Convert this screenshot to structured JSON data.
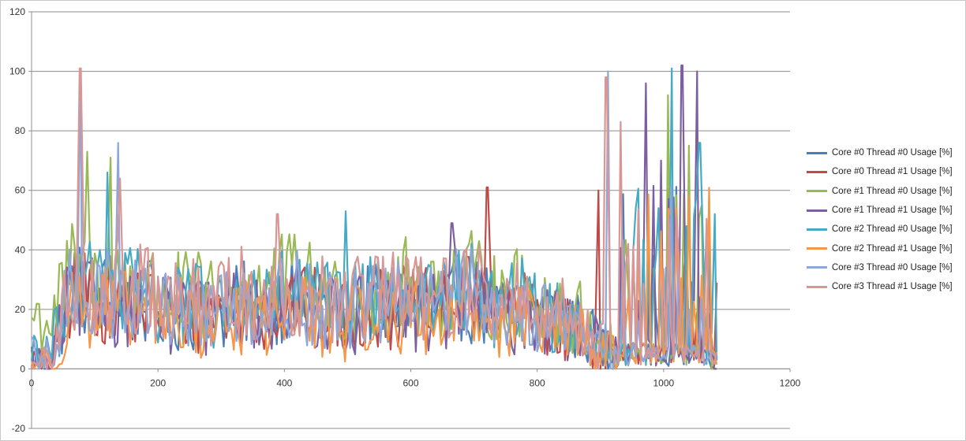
{
  "chart_data": {
    "type": "line",
    "title": "",
    "xlabel": "",
    "ylabel": "",
    "xlim": [
      0,
      1200
    ],
    "ylim": [
      -20,
      120
    ],
    "x_ticks": [
      "0",
      "200",
      "400",
      "600",
      "800",
      "1000",
      "1200"
    ],
    "y_ticks": [
      "-20",
      "0",
      "20",
      "40",
      "60",
      "80",
      "100",
      "120"
    ],
    "grid": "horizontal",
    "legend_position": "right",
    "x_range": [
      0,
      1085
    ],
    "series": [
      {
        "name": "Core #0 Thread #0 Usage [%]",
        "color": "#4a7ebb",
        "baseline": [
          3,
          2,
          28,
          25,
          24,
          24,
          22,
          18,
          20,
          18,
          20,
          22,
          20,
          24,
          22,
          20,
          17,
          22,
          20,
          22,
          20,
          20,
          25,
          22,
          18,
          20,
          18,
          16,
          14,
          8,
          2,
          2,
          8,
          2,
          2,
          2
        ]
      },
      {
        "name": "Core #0 Thread #1 Usage [%]",
        "color": "#be4b48",
        "baseline": [
          1,
          1,
          26,
          24,
          23,
          23,
          21,
          18,
          19,
          18,
          20,
          21,
          19,
          23,
          21,
          19,
          17,
          21,
          20,
          21,
          20,
          20,
          24,
          21,
          18,
          19,
          18,
          15,
          13,
          8,
          2,
          2,
          6,
          2,
          2,
          5
        ]
      },
      {
        "name": "Core #1 Thread #0 Usage [%]",
        "color": "#98b954",
        "baseline": [
          18,
          16,
          32,
          30,
          29,
          29,
          27,
          23,
          25,
          23,
          26,
          28,
          25,
          30,
          27,
          25,
          22,
          27,
          25,
          28,
          26,
          26,
          31,
          27,
          23,
          26,
          23,
          20,
          17,
          10,
          3,
          3,
          10,
          3,
          3,
          3
        ]
      },
      {
        "name": "Core #1 Thread #1 Usage [%]",
        "color": "#7d5fa0",
        "baseline": [
          2,
          1,
          25,
          23,
          22,
          22,
          20,
          17,
          18,
          17,
          19,
          20,
          18,
          22,
          20,
          18,
          16,
          20,
          19,
          20,
          19,
          19,
          23,
          20,
          17,
          18,
          17,
          15,
          13,
          9,
          3,
          3,
          9,
          3,
          3,
          2
        ]
      },
      {
        "name": "Core #2 Thread #0 Usage [%]",
        "color": "#46aac5",
        "baseline": [
          8,
          6,
          29,
          27,
          26,
          26,
          24,
          20,
          22,
          20,
          23,
          25,
          22,
          27,
          24,
          22,
          19,
          24,
          22,
          25,
          23,
          23,
          28,
          24,
          20,
          23,
          20,
          17,
          15,
          8,
          2,
          2,
          8,
          2,
          2,
          6
        ]
      },
      {
        "name": "Core #2 Thread #1 Usage [%]",
        "color": "#f79646",
        "baseline": [
          1,
          1,
          22,
          20,
          19,
          19,
          18,
          15,
          16,
          15,
          17,
          18,
          16,
          19,
          18,
          16,
          14,
          18,
          17,
          18,
          17,
          17,
          20,
          18,
          15,
          16,
          15,
          13,
          11,
          7,
          2,
          2,
          6,
          2,
          2,
          2
        ]
      },
      {
        "name": "Core #3 Thread #0 Usage [%]",
        "color": "#8ea6d8",
        "baseline": [
          3,
          2,
          28,
          26,
          25,
          25,
          23,
          19,
          21,
          19,
          22,
          24,
          21,
          26,
          23,
          21,
          18,
          23,
          21,
          24,
          22,
          22,
          27,
          23,
          19,
          22,
          19,
          16,
          14,
          8,
          2,
          2,
          8,
          2,
          2,
          3
        ]
      },
      {
        "name": "Core #3 Thread #1 Usage [%]",
        "color": "#d99694",
        "baseline": [
          2,
          1,
          30,
          28,
          27,
          27,
          25,
          21,
          23,
          21,
          24,
          26,
          23,
          28,
          25,
          23,
          20,
          25,
          23,
          26,
          24,
          24,
          29,
          25,
          21,
          24,
          21,
          18,
          16,
          9,
          3,
          3,
          9,
          3,
          3,
          2
        ]
      }
    ],
    "peaks": [
      {
        "series": 7,
        "x": 78,
        "y": 101
      },
      {
        "series": 6,
        "x": 77,
        "y": 98
      },
      {
        "series": 2,
        "x": 88,
        "y": 73
      },
      {
        "series": 4,
        "x": 120,
        "y": 66
      },
      {
        "series": 2,
        "x": 125,
        "y": 71
      },
      {
        "series": 6,
        "x": 137,
        "y": 76
      },
      {
        "series": 7,
        "x": 140,
        "y": 64
      },
      {
        "series": 7,
        "x": 390,
        "y": 52
      },
      {
        "series": 4,
        "x": 497,
        "y": 53
      },
      {
        "series": 3,
        "x": 666,
        "y": 49
      },
      {
        "series": 1,
        "x": 722,
        "y": 61
      },
      {
        "series": 1,
        "x": 897,
        "y": 60
      },
      {
        "series": 6,
        "x": 912,
        "y": 100
      },
      {
        "series": 7,
        "x": 910,
        "y": 98
      },
      {
        "series": 7,
        "x": 932,
        "y": 83
      },
      {
        "series": 3,
        "x": 972,
        "y": 96
      },
      {
        "series": 3,
        "x": 996,
        "y": 70
      },
      {
        "series": 2,
        "x": 1007,
        "y": 92
      },
      {
        "series": 4,
        "x": 1013,
        "y": 101
      },
      {
        "series": 3,
        "x": 1030,
        "y": 102
      },
      {
        "series": 3,
        "x": 1053,
        "y": 100
      },
      {
        "series": 2,
        "x": 1040,
        "y": 75
      },
      {
        "series": 4,
        "x": 1058,
        "y": 76
      },
      {
        "series": 4,
        "x": 1081,
        "y": 52
      },
      {
        "series": 1,
        "x": 1086,
        "y": 29
      }
    ]
  }
}
